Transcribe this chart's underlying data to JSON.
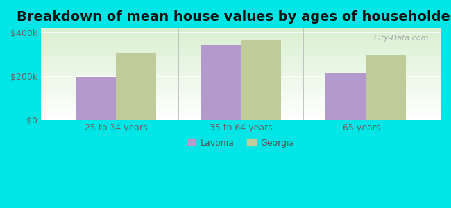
{
  "title": "Breakdown of mean house values by ages of householders",
  "categories": [
    "25 to 34 years",
    "35 to 64 years",
    "65 years+"
  ],
  "lavonia_values": [
    197000,
    345000,
    215000
  ],
  "georgia_values": [
    305000,
    365000,
    300000
  ],
  "lavonia_color": "#b399cc",
  "georgia_color": "#bfcc99",
  "background_color": "#00e5e5",
  "gradient_top": "#d8f0d0",
  "gradient_bottom": "#ffffff",
  "ylim": [
    0,
    420000
  ],
  "yticks": [
    0,
    200000,
    400000
  ],
  "ytick_labels": [
    "$0",
    "$200k",
    "$400k"
  ],
  "legend_labels": [
    "Lavonia",
    "Georgia"
  ],
  "bar_width": 0.32,
  "title_fontsize": 14,
  "tick_fontsize": 9,
  "legend_fontsize": 9,
  "watermark": "City-Data.com"
}
